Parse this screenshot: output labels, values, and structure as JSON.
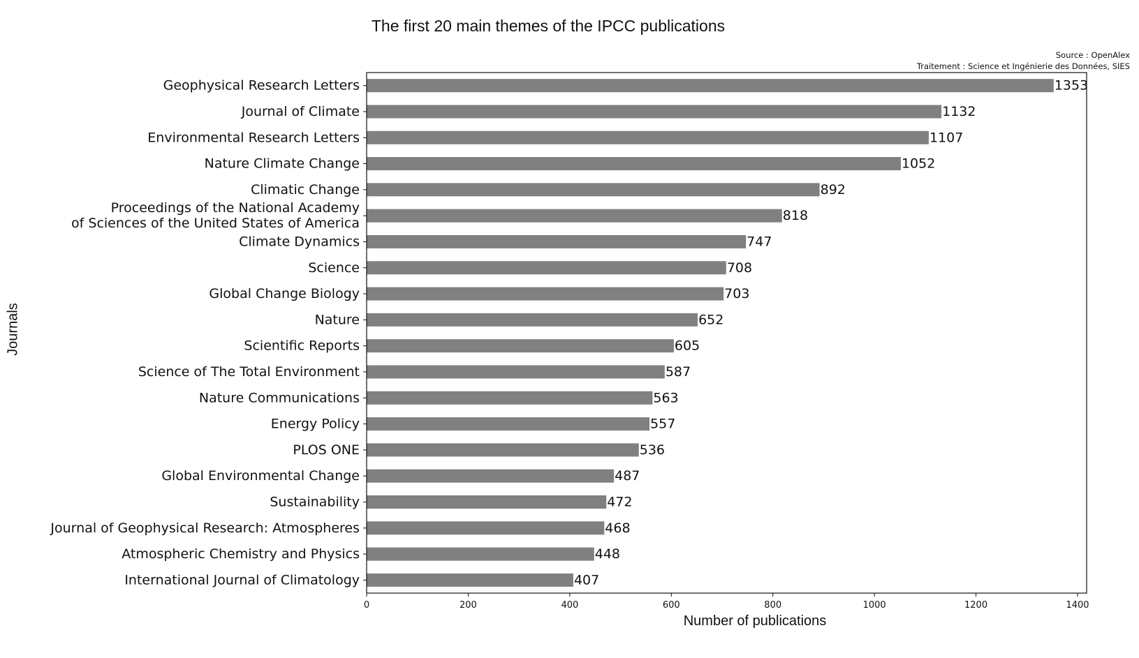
{
  "chart_data": {
    "type": "bar",
    "orientation": "horizontal",
    "title": "The first 20 main themes of the IPCC publications",
    "source_lines": [
      "Source : OpenAlex",
      "Traitement : Science et Ingénierie des Données, SIES"
    ],
    "xlabel": "Number of publications",
    "ylabel": "Journals",
    "xlim": [
      0,
      1410
    ],
    "xticks": [
      0,
      200,
      400,
      600,
      800,
      1000,
      1200,
      1400
    ],
    "grid": false,
    "bar_color": "#808080",
    "categories": [
      "Geophysical Research Letters",
      "Journal of Climate",
      "Environmental Research Letters",
      "Nature Climate Change",
      "Climatic Change",
      [
        "Proceedings of the National Academy",
        "of Sciences of the United States of America"
      ],
      "Climate Dynamics",
      "Science",
      "Global Change Biology",
      "Nature",
      "Scientific Reports",
      "Science of The Total Environment",
      "Nature Communications",
      "Energy Policy",
      "PLOS ONE",
      "Global Environmental Change",
      "Sustainability",
      "Journal of Geophysical Research: Atmospheres",
      "Atmospheric Chemistry and Physics",
      "International Journal of Climatology"
    ],
    "values": [
      1353,
      1132,
      1107,
      1052,
      892,
      818,
      747,
      708,
      703,
      652,
      605,
      587,
      563,
      557,
      536,
      487,
      472,
      468,
      448,
      407
    ]
  }
}
